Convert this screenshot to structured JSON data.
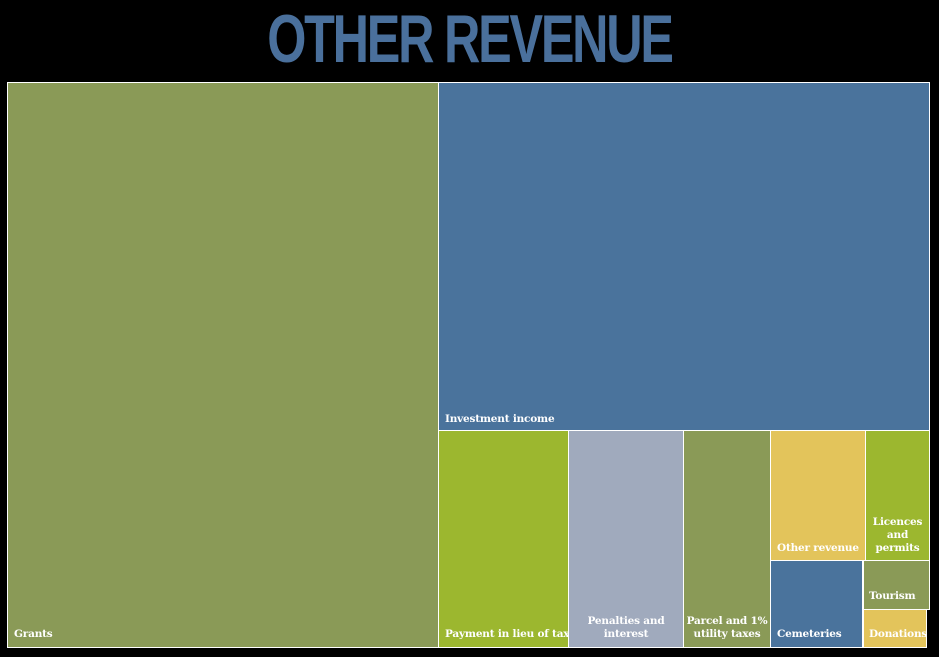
{
  "chart_data": {
    "type": "treemap",
    "title": "OTHER REVENUE",
    "colors": {
      "olive": "#8a9a57",
      "steel_blue": "#4a739c",
      "lime": "#9cb72f",
      "grey_blue": "#a0aabd",
      "gold": "#e3c45b"
    },
    "items": [
      {
        "name": "Grants",
        "value": 39.9,
        "color": "#8a9a57"
      },
      {
        "name": "Investment income",
        "value": 31.1,
        "color": "#4a739c"
      },
      {
        "name": "Payment in lieu of taxes",
        "value": 13.1,
        "color": "#9cb72f"
      },
      {
        "name": "Penalties and\ninterest",
        "value": 11.4,
        "color": "#a0aabd"
      },
      {
        "name": "Parcel and 1%\nutility taxes",
        "value": 8.8,
        "color": "#8a9a57"
      },
      {
        "name": "Other revenue",
        "value": 4.2,
        "color": "#e3c45b"
      },
      {
        "name": "Cemeteries",
        "value": 3.4,
        "color": "#4a739c"
      },
      {
        "name": "Licences\nand\npermits",
        "value": 2.7,
        "color": "#9cb72f"
      },
      {
        "name": "Tourism",
        "value": 1.1,
        "color": "#8a9a57"
      },
      {
        "name": "Donations",
        "value": 1.0,
        "color": "#e3c45b"
      }
    ]
  }
}
